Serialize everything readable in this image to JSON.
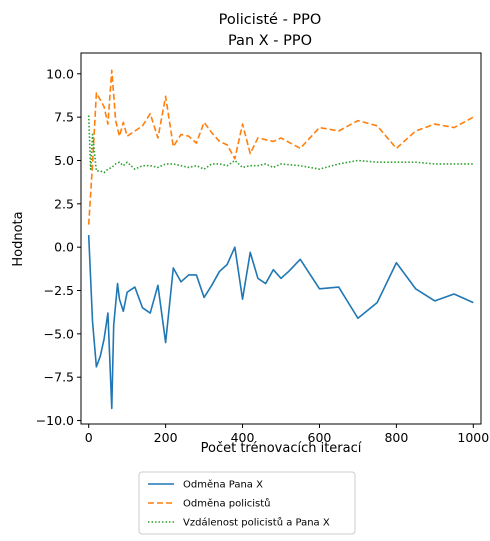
{
  "chart_data": {
    "type": "line",
    "title": "Policisté - PPO",
    "subtitle": "Pan X - PPO",
    "xlabel": "Počet trénovacích iterací",
    "ylabel": "Hodnota",
    "xlim": [
      -20,
      1020
    ],
    "ylim": [
      -10.2,
      11.2
    ],
    "x_ticks": [
      0,
      200,
      400,
      600,
      800,
      1000
    ],
    "x_tick_labels": [
      "0",
      "200",
      "400",
      "600",
      "800",
      "1000"
    ],
    "y_ticks": [
      -10,
      -7.5,
      -5,
      -2.5,
      0,
      2.5,
      5,
      7.5,
      10
    ],
    "y_tick_labels": [
      "−10.0",
      "−7.5",
      "−5.0",
      "−2.5",
      "0.0",
      "2.5",
      "5.0",
      "7.5",
      "10.0"
    ],
    "grid": false,
    "legend_position": "below",
    "series": [
      {
        "name": "Odměna Pana X",
        "color": "#1f77b4",
        "style": "solid",
        "x": [
          0,
          10,
          20,
          30,
          40,
          50,
          60,
          65,
          70,
          75,
          80,
          90,
          100,
          120,
          140,
          160,
          180,
          200,
          220,
          240,
          260,
          280,
          300,
          320,
          340,
          360,
          380,
          400,
          420,
          440,
          460,
          480,
          500,
          520,
          550,
          600,
          650,
          700,
          750,
          800,
          850,
          900,
          950,
          1000
        ],
        "y": [
          0.7,
          -4.3,
          -6.9,
          -6.3,
          -5.3,
          -3.8,
          -9.3,
          -4.5,
          -3.3,
          -2.1,
          -3.0,
          -3.7,
          -2.6,
          -2.3,
          -3.5,
          -3.8,
          -2.2,
          -5.5,
          -1.2,
          -2.0,
          -1.6,
          -1.6,
          -2.9,
          -2.2,
          -1.4,
          -1.0,
          0.0,
          -3.0,
          -0.3,
          -1.8,
          -2.1,
          -1.3,
          -1.8,
          -1.4,
          -0.7,
          -2.4,
          -2.3,
          -4.1,
          -3.2,
          -0.9,
          -2.4,
          -3.1,
          -2.7,
          -3.2
        ]
      },
      {
        "name": "Odměna policistů",
        "color": "#ff7f0e",
        "style": "dashed",
        "x": [
          0,
          10,
          20,
          30,
          40,
          50,
          60,
          65,
          70,
          80,
          90,
          100,
          120,
          140,
          160,
          180,
          200,
          220,
          240,
          260,
          280,
          300,
          320,
          340,
          360,
          380,
          400,
          420,
          440,
          460,
          480,
          500,
          550,
          600,
          650,
          700,
          750,
          800,
          850,
          900,
          950,
          1000
        ],
        "y": [
          1.3,
          4.8,
          8.9,
          8.5,
          8.1,
          7.1,
          10.2,
          8.8,
          7.3,
          6.4,
          7.2,
          6.4,
          6.7,
          7.0,
          7.7,
          6.3,
          8.7,
          5.8,
          6.5,
          6.4,
          6.0,
          7.2,
          6.6,
          6.1,
          5.9,
          5.1,
          7.1,
          5.4,
          6.3,
          6.2,
          6.1,
          6.3,
          5.7,
          6.9,
          6.7,
          7.3,
          7.0,
          5.7,
          6.7,
          7.1,
          6.9,
          7.5
        ]
      },
      {
        "name": "Vzdálenost policistů a Pana X",
        "color": "#2ca02c",
        "style": "dotted",
        "x": [
          0,
          5,
          10,
          20,
          30,
          40,
          50,
          60,
          70,
          80,
          90,
          100,
          120,
          140,
          160,
          180,
          200,
          220,
          240,
          260,
          280,
          300,
          320,
          340,
          360,
          380,
          400,
          420,
          440,
          460,
          480,
          500,
          550,
          600,
          650,
          700,
          750,
          800,
          850,
          900,
          950,
          1000
        ],
        "y": [
          7.6,
          4.5,
          6.5,
          4.4,
          4.4,
          4.3,
          4.5,
          4.6,
          4.8,
          4.9,
          4.7,
          4.9,
          4.5,
          4.7,
          4.7,
          4.6,
          4.8,
          4.8,
          4.7,
          4.6,
          4.7,
          4.5,
          4.8,
          4.8,
          4.7,
          5.0,
          4.6,
          4.7,
          4.7,
          4.8,
          4.6,
          4.8,
          4.7,
          4.5,
          4.8,
          5.0,
          4.9,
          4.9,
          4.9,
          4.8,
          4.8,
          4.8
        ]
      }
    ]
  }
}
